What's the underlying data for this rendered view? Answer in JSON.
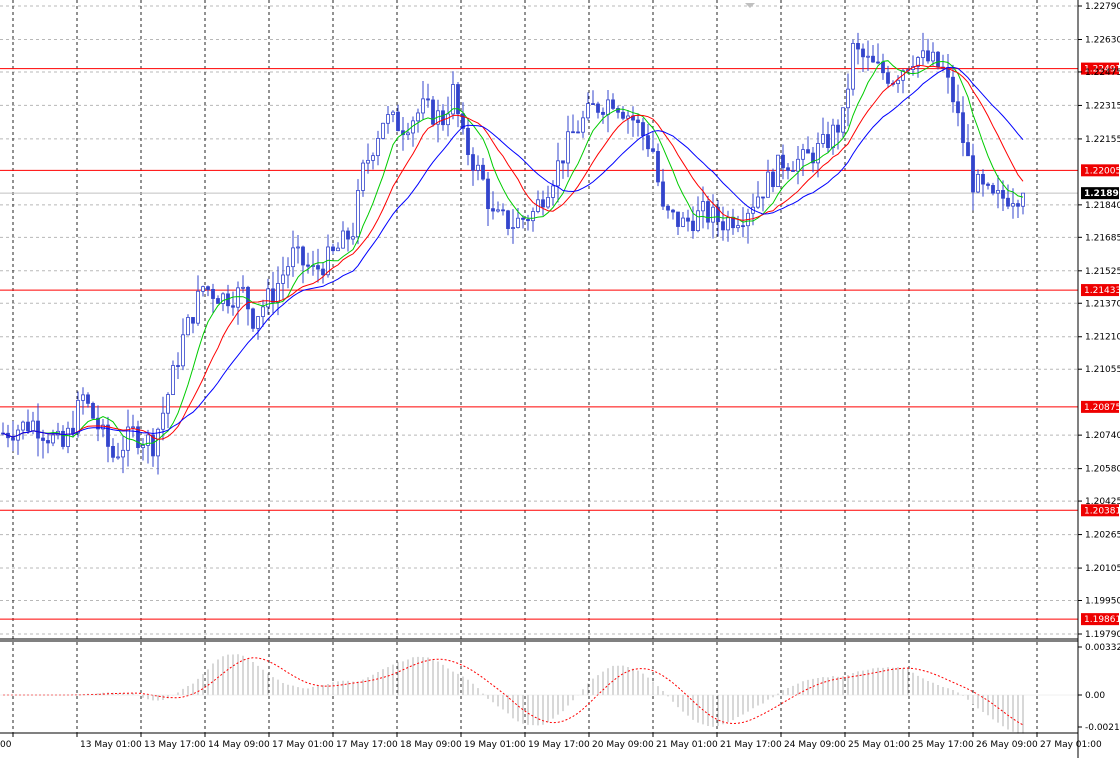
{
  "chart_data": [
    {
      "type": "candlestick",
      "symbol_panel": "main",
      "price_axis_ticks": [
        "1.22790",
        "1.22630",
        "1.22475",
        "1.22315",
        "1.22155",
        "1.21840",
        "1.21685",
        "1.21525",
        "1.21370",
        "1.21210",
        "1.21055",
        "1.20740",
        "1.20580",
        "1.20425",
        "1.20265",
        "1.20105",
        "1.19950",
        "1.19790"
      ],
      "price_range": [
        1.1979,
        1.2279
      ],
      "current_price": "1.21896",
      "horizontal_levels": [
        "1.22491",
        "1.22005",
        "1.21433",
        "1.20875",
        "1.20381",
        "1.19861"
      ],
      "time_labels": [
        "00",
        "13 May 01:00",
        "13 May 17:00",
        "14 May 09:00",
        "17 May 01:00",
        "17 May 17:00",
        "18 May 09:00",
        "19 May 01:00",
        "19 May 17:00",
        "20 May 09:00",
        "21 May 01:00",
        "21 May 17:00",
        "24 May 09:00",
        "25 May 01:00",
        "25 May 17:00",
        "26 May 09:00",
        "27 May 01:00"
      ],
      "price_path": [
        [
          0,
          1.2075
        ],
        [
          6,
          1.208
        ],
        [
          12,
          1.2068
        ],
        [
          16,
          1.2092
        ],
        [
          22,
          1.2064
        ],
        [
          26,
          1.2075
        ],
        [
          30,
          1.207
        ],
        [
          32,
          1.2085
        ],
        [
          36,
          1.212
        ],
        [
          40,
          1.2145
        ],
        [
          44,
          1.214
        ],
        [
          48,
          1.2142
        ],
        [
          50,
          1.213
        ],
        [
          54,
          1.2142
        ],
        [
          58,
          1.216
        ],
        [
          62,
          1.2152
        ],
        [
          66,
          1.216
        ],
        [
          70,
          1.2172
        ],
        [
          72,
          1.22
        ],
        [
          76,
          1.2225
        ],
        [
          80,
          1.2222
        ],
        [
          84,
          1.223
        ],
        [
          88,
          1.2225
        ],
        [
          90,
          1.2238
        ],
        [
          92,
          1.2215
        ],
        [
          96,
          1.2195
        ],
        [
          98,
          1.2178
        ],
        [
          102,
          1.2175
        ],
        [
          106,
          1.218
        ],
        [
          110,
          1.2198
        ],
        [
          114,
          1.2218
        ],
        [
          118,
          1.223
        ],
        [
          122,
          1.2235
        ],
        [
          126,
          1.2225
        ],
        [
          130,
          1.221
        ],
        [
          132,
          1.218
        ],
        [
          136,
          1.2175
        ],
        [
          140,
          1.218
        ],
        [
          144,
          1.2176
        ],
        [
          148,
          1.218
        ],
        [
          152,
          1.2192
        ],
        [
          156,
          1.2205
        ],
        [
          160,
          1.2205
        ],
        [
          164,
          1.2212
        ],
        [
          168,
          1.2225
        ],
        [
          170,
          1.2258
        ],
        [
          174,
          1.225
        ],
        [
          178,
          1.2245
        ],
        [
          182,
          1.2255
        ],
        [
          186,
          1.2252
        ],
        [
          188,
          1.2248
        ],
        [
          190,
          1.2235
        ],
        [
          192,
          1.2215
        ],
        [
          194,
          1.2195
        ],
        [
          198,
          1.2186
        ],
        [
          202,
          1.2189
        ],
        [
          204,
          1.21896
        ]
      ],
      "moving_averages": [
        {
          "color": "#00cc00",
          "period_hint": "fast"
        },
        {
          "color": "#ff0000",
          "period_hint": "medium"
        },
        {
          "color": "#0000ff",
          "period_hint": "slow"
        }
      ]
    },
    {
      "type": "histogram",
      "symbol_panel": "oscillator",
      "axis_ticks": [
        "0.003323",
        "0.00",
        "-0.00215"
      ],
      "signal_line_color": "#ff0000"
    }
  ],
  "colors": {
    "candle": "#3344cc",
    "grid": "#b8b8b8",
    "level_line": "#ff0000",
    "level_tag": "#ee0000",
    "current_tag": "#000000",
    "histogram": "#b0b0b0",
    "signal": "#ff0000"
  }
}
